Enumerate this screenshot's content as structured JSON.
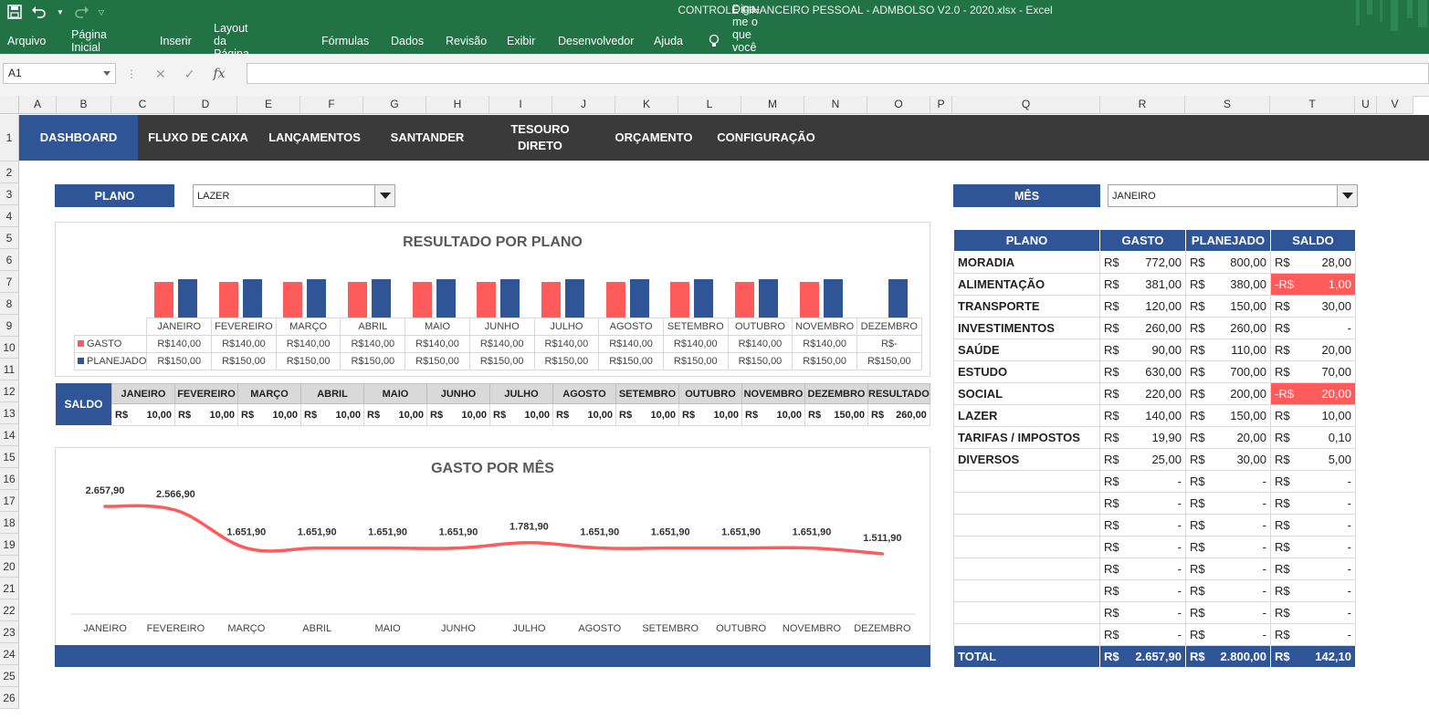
{
  "window": {
    "title": "CONTROLE FINANCEIRO PESSOAL - ADMBOLSO V2.0 - 2020.xlsx  -  Excel"
  },
  "ribbon": {
    "tabs": [
      "Arquivo",
      "Página Inicial",
      "Inserir",
      "Layout da Página",
      "Fórmulas",
      "Dados",
      "Revisão",
      "Exibir",
      "Desenvolvedor",
      "Ajuda"
    ],
    "tell_me": "Diga-me o que você deseja fazer"
  },
  "formula_bar": {
    "name_box": "A1",
    "fx": "fx",
    "value": ""
  },
  "grid": {
    "columns": [
      "A",
      "B",
      "C",
      "D",
      "E",
      "F",
      "G",
      "H",
      "I",
      "J",
      "K",
      "L",
      "M",
      "N",
      "O",
      "P",
      "Q",
      "R",
      "S",
      "T",
      "U",
      "V"
    ],
    "rows": [
      "1",
      "2",
      "3",
      "4",
      "5",
      "6",
      "7",
      "8",
      "9",
      "10",
      "11",
      "12",
      "13",
      "14",
      "15",
      "16",
      "17",
      "18",
      "19",
      "20",
      "21",
      "22",
      "23",
      "24",
      "25",
      "26"
    ]
  },
  "nav": {
    "dashboard": "DASHBOARD",
    "fluxo": "FLUXO DE CAIXA",
    "lancamentos": "LANÇAMENTOS",
    "santander": "SANTANDER",
    "tesouro_1": "TESOURO",
    "tesouro_2": "DIRETO",
    "orcamento": "ORÇAMENTO",
    "configuracao": "CONFIGURAÇÃO"
  },
  "selectors": {
    "plano_label": "PLANO",
    "plano_value": "LAZER",
    "mes_label": "MÊS",
    "mes_value": "JANEIRO"
  },
  "colors": {
    "gasto": "#ff5b5b",
    "planejado": "#2f5597",
    "excel_green": "#217346",
    "nav_dark": "#3a3a3a"
  },
  "chart_data": [
    {
      "type": "bar",
      "title": "RESULTADO POR PLANO",
      "categories": [
        "JANEIRO",
        "FEVEREIRO",
        "MARÇO",
        "ABRIL",
        "MAIO",
        "JUNHO",
        "JULHO",
        "AGOSTO",
        "SETEMBRO",
        "OUTUBRO",
        "NOVEMBRO",
        "DEZEMBRO"
      ],
      "series": [
        {
          "name": "GASTO",
          "values": [
            140,
            140,
            140,
            140,
            140,
            140,
            140,
            140,
            140,
            140,
            140,
            0
          ],
          "labels": [
            "R$140,00",
            "R$140,00",
            "R$140,00",
            "R$140,00",
            "R$140,00",
            "R$140,00",
            "R$140,00",
            "R$140,00",
            "R$140,00",
            "R$140,00",
            "R$140,00",
            "R$-"
          ]
        },
        {
          "name": "PLANEJADO",
          "values": [
            150,
            150,
            150,
            150,
            150,
            150,
            150,
            150,
            150,
            150,
            150,
            150
          ],
          "labels": [
            "R$150,00",
            "R$150,00",
            "R$150,00",
            "R$150,00",
            "R$150,00",
            "R$150,00",
            "R$150,00",
            "R$150,00",
            "R$150,00",
            "R$150,00",
            "R$150,00",
            "R$150,00"
          ]
        }
      ],
      "ylim": [
        0,
        150
      ],
      "legend": "data-table"
    },
    {
      "type": "line",
      "title": "GASTO POR MÊS",
      "categories": [
        "JANEIRO",
        "FEVEREIRO",
        "MARÇO",
        "ABRIL",
        "MAIO",
        "JUNHO",
        "JULHO",
        "AGOSTO",
        "SETEMBRO",
        "OUTUBRO",
        "NOVEMBRO",
        "DEZEMBRO"
      ],
      "series": [
        {
          "values": [
            2657.9,
            2566.9,
            1651.9,
            1651.9,
            1651.9,
            1651.9,
            1781.9,
            1651.9,
            1651.9,
            1651.9,
            1651.9,
            1511.9
          ],
          "labels": [
            "2.657,90",
            "2.566,90",
            "1.651,90",
            "1.651,90",
            "1.651,90",
            "1.651,90",
            "1.781,90",
            "1.651,90",
            "1.651,90",
            "1.651,90",
            "1.651,90",
            "1.511,90"
          ]
        }
      ],
      "grid": false
    }
  ],
  "saldo": {
    "label": "SALDO",
    "headers": [
      "JANEIRO",
      "FEVEREIRO",
      "MARÇO",
      "ABRIL",
      "MAIO",
      "JUNHO",
      "JULHO",
      "AGOSTO",
      "SETEMBRO",
      "OUTUBRO",
      "NOVEMBRO",
      "DEZEMBRO",
      "RESULTADO"
    ],
    "currency": "R$",
    "values": [
      "10,00",
      "10,00",
      "10,00",
      "10,00",
      "10,00",
      "10,00",
      "10,00",
      "10,00",
      "10,00",
      "10,00",
      "10,00",
      "150,00",
      "260,00"
    ]
  },
  "plan_table": {
    "headers": [
      "PLANO",
      "GASTO",
      "PLANEJADO",
      "SALDO"
    ],
    "currency": "R$",
    "rows": [
      {
        "plano": "MORADIA",
        "gasto": "772,00",
        "planejado": "800,00",
        "saldo": "28,00",
        "neg": false
      },
      {
        "plano": "ALIMENTAÇÃO",
        "gasto": "381,00",
        "planejado": "380,00",
        "saldo": "1,00",
        "neg": true
      },
      {
        "plano": "TRANSPORTE",
        "gasto": "120,00",
        "planejado": "150,00",
        "saldo": "30,00",
        "neg": false
      },
      {
        "plano": "INVESTIMENTOS",
        "gasto": "260,00",
        "planejado": "260,00",
        "saldo": "-",
        "neg": false
      },
      {
        "plano": "SAÚDE",
        "gasto": "90,00",
        "planejado": "110,00",
        "saldo": "20,00",
        "neg": false
      },
      {
        "plano": "ESTUDO",
        "gasto": "630,00",
        "planejado": "700,00",
        "saldo": "70,00",
        "neg": false
      },
      {
        "plano": "SOCIAL",
        "gasto": "220,00",
        "planejado": "200,00",
        "saldo": "20,00",
        "neg": true
      },
      {
        "plano": "LAZER",
        "gasto": "140,00",
        "planejado": "150,00",
        "saldo": "10,00",
        "neg": false
      },
      {
        "plano": "TARIFAS / IMPOSTOS",
        "gasto": "19,90",
        "planejado": "20,00",
        "saldo": "0,10",
        "neg": false
      },
      {
        "plano": "DIVERSOS",
        "gasto": "25,00",
        "planejado": "30,00",
        "saldo": "5,00",
        "neg": false
      },
      {
        "plano": "",
        "gasto": "-",
        "planejado": "-",
        "saldo": "-",
        "neg": false
      },
      {
        "plano": "",
        "gasto": "-",
        "planejado": "-",
        "saldo": "-",
        "neg": false
      },
      {
        "plano": "",
        "gasto": "-",
        "planejado": "-",
        "saldo": "-",
        "neg": false
      },
      {
        "plano": "",
        "gasto": "-",
        "planejado": "-",
        "saldo": "-",
        "neg": false
      },
      {
        "plano": "",
        "gasto": "-",
        "planejado": "-",
        "saldo": "-",
        "neg": false
      },
      {
        "plano": "",
        "gasto": "-",
        "planejado": "-",
        "saldo": "-",
        "neg": false
      },
      {
        "plano": "",
        "gasto": "-",
        "planejado": "-",
        "saldo": "-",
        "neg": false
      },
      {
        "plano": "",
        "gasto": "-",
        "planejado": "-",
        "saldo": "-",
        "neg": false
      }
    ],
    "total": {
      "label": "TOTAL",
      "gasto": "2.657,90",
      "planejado": "2.800,00",
      "saldo": "142,10"
    }
  }
}
